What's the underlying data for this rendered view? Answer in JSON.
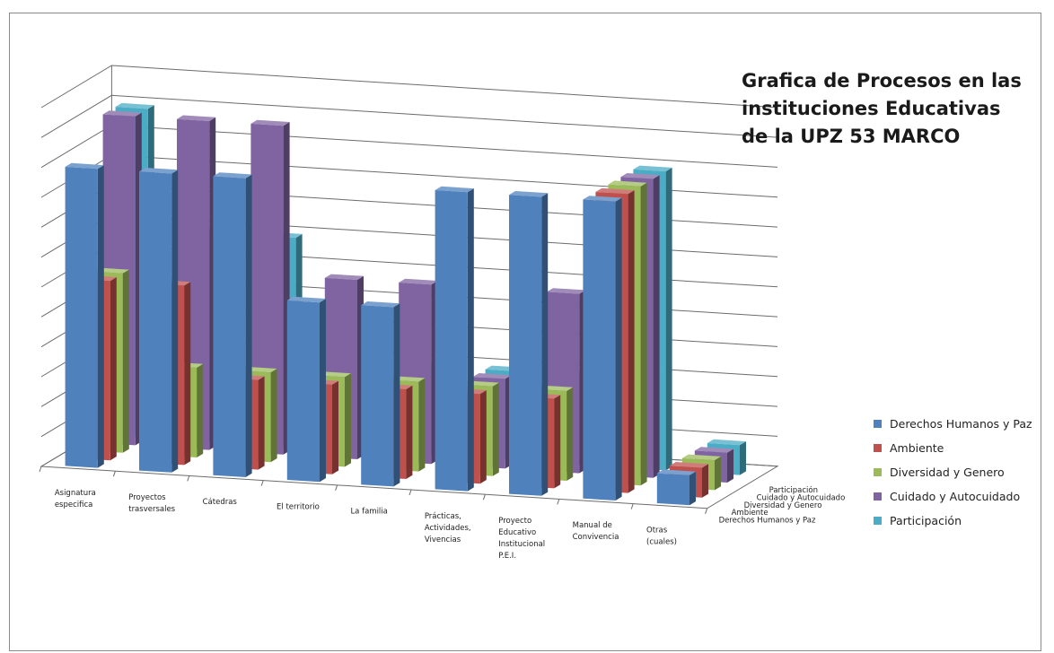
{
  "chart_data": {
    "type": "bar",
    "variant": "3d-column",
    "title": [
      "Grafica de  Procesos  en las",
      "instituciones Educativas",
      "de la  UPZ 53 MARCO"
    ],
    "categories": [
      [
        "Asignatura",
        "especifica"
      ],
      [
        "Proyectos",
        "trasversales"
      ],
      [
        "Cátedras"
      ],
      [
        "El territorio"
      ],
      [
        "La familia"
      ],
      [
        "Prácticas,",
        "Actividades,",
        "Vivencias"
      ],
      [
        "Proyecto",
        "Educativo",
        "Institucional",
        "P.E.I."
      ],
      [
        "Manual de",
        "Convivencia"
      ],
      [
        "Otras",
        "(cuales)"
      ]
    ],
    "series": [
      {
        "name": "Derechos Humanos y Paz",
        "depth_label": "Derechos  Humanos  y Paz",
        "color": "#4F81BD",
        "values": [
          10.0,
          10.0,
          10.0,
          6.0,
          6.0,
          10.0,
          10.0,
          10.0,
          1.0
        ]
      },
      {
        "name": "Ambiente",
        "depth_label": "Ambiente",
        "color": "#C0504D",
        "values": [
          6.0,
          6.0,
          3.0,
          3.0,
          3.0,
          3.0,
          3.0,
          10.0,
          1.0
        ]
      },
      {
        "name": "Diversidad y Genero",
        "depth_label": "Diversidad  y Genero",
        "color": "#9BBB59",
        "values": [
          6.0,
          3.0,
          3.0,
          3.0,
          3.0,
          3.0,
          3.0,
          10.0,
          1.0
        ]
      },
      {
        "name": "Cuidado y Autocuidado",
        "depth_label": "Cuidado  y Autocuidado",
        "color": "#8064A2",
        "values": [
          11.0,
          11.0,
          11.0,
          6.0,
          6.0,
          3.0,
          6.0,
          10.0,
          1.0
        ]
      },
      {
        "name": "Participación",
        "depth_label": "Participación",
        "color": "#4BACC6",
        "values": [
          11.0,
          7.0,
          7.0,
          3.0,
          3.0,
          3.0,
          3.0,
          10.0,
          1.0
        ]
      }
    ],
    "ylim": [
      0,
      12
    ],
    "grid": true,
    "legend_position": "right"
  }
}
